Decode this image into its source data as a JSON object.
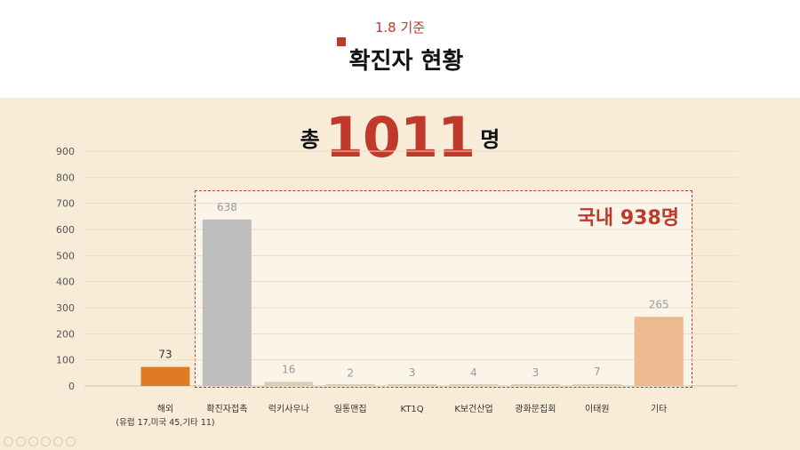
{
  "header": {
    "date_label": "1.8 기준",
    "title": "확진자 현황"
  },
  "summary": {
    "prefix": "총",
    "total": "1011",
    "suffix": "명",
    "domestic_label": "국내 938명"
  },
  "colors": {
    "accent": "#c0392b",
    "panel_bg": "#f8ecd8",
    "overseas_bar": "#e07b24",
    "contact_bar": "#bdbdbd",
    "domestic_bar": "#d9ccb8",
    "other_bar": "#edb98e"
  },
  "chart_data": {
    "type": "bar",
    "categories": [
      "해외",
      "확진자접촉",
      "럭키사우나",
      "일통맨집",
      "KT1Q",
      "K보건산업",
      "광화문집회",
      "이태원",
      "기타"
    ],
    "category_sublabels": [
      "(유럽 17,미국 45,기타 11)",
      "",
      "",
      "",
      "",
      "",
      "",
      "",
      ""
    ],
    "values": [
      73,
      638,
      16,
      2,
      3,
      4,
      3,
      7,
      265
    ],
    "data_labels": [
      "73",
      "638",
      "16",
      "2",
      "3",
      "4",
      "3",
      "7",
      "265"
    ],
    "yticks": [
      "0",
      "100",
      "200",
      "300",
      "400",
      "500",
      "600",
      "700",
      "800",
      "900"
    ],
    "ylim": [
      0,
      900
    ],
    "bar_colors": [
      "#e07b24",
      "#bdbdbd",
      "#d9ccb8",
      "#d9ccb8",
      "#d9ccb8",
      "#d9ccb8",
      "#d9ccb8",
      "#d9ccb8",
      "#edb98e"
    ],
    "label_colors": [
      "#333333",
      "#9a9a9a",
      "#9a9a9a",
      "#9a9a9a",
      "#9a9a9a",
      "#9a9a9a",
      "#9a9a9a",
      "#9a9a9a",
      "#9a9a9a"
    ],
    "grid": true,
    "xlabel": "",
    "ylabel": ""
  }
}
